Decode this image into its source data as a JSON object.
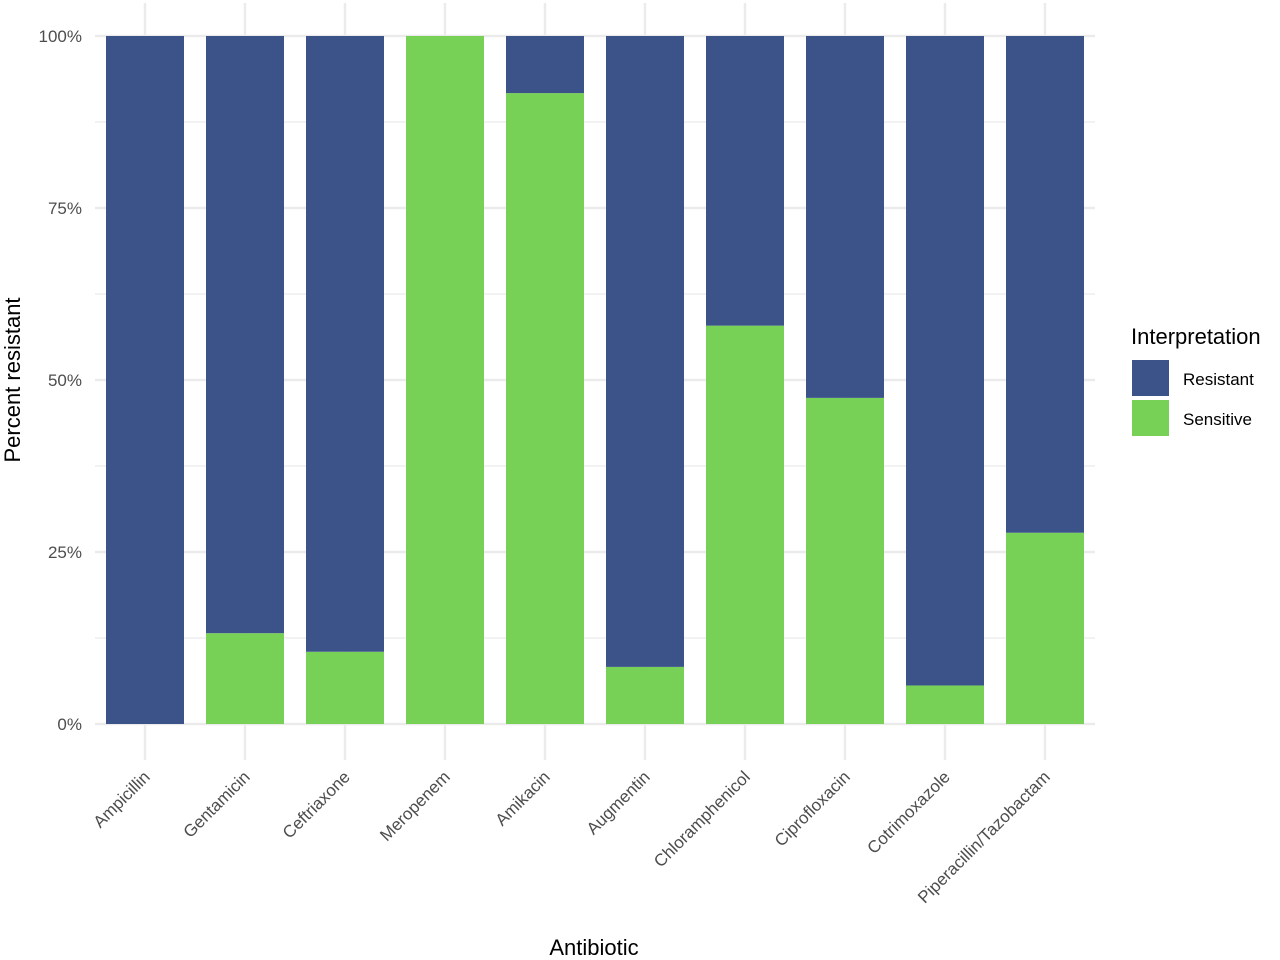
{
  "chart_data": {
    "type": "bar",
    "stacked": true,
    "percent_scale": true,
    "categories": [
      "Ampicillin",
      "Gentamicin",
      "Ceftriaxone",
      "Meropenem",
      "Amikacin",
      "Augmentin",
      "Chloramphenicol",
      "Ciprofloxacin",
      "Cotrimoxazole",
      "Piperacillin/Tazobactam"
    ],
    "series": [
      {
        "name": "Sensitive",
        "color": "#77d157",
        "values": [
          0,
          13.2,
          10.5,
          100,
          91.7,
          8.3,
          57.9,
          47.4,
          5.6,
          27.8
        ]
      },
      {
        "name": "Resistant",
        "color": "#3c538a",
        "values": [
          100,
          86.8,
          89.5,
          0,
          8.3,
          91.7,
          42.1,
          52.6,
          94.4,
          72.2
        ]
      }
    ],
    "xlabel": "Antibiotic",
    "ylabel": "Percent resistant",
    "ylim": [
      0,
      100
    ],
    "yticks": [
      "0%",
      "25%",
      "50%",
      "75%",
      "100%"
    ],
    "grid": true,
    "legend": {
      "title": "Interpretation",
      "position": "right",
      "entries": [
        {
          "label": "Resistant",
          "color": "#3c538a"
        },
        {
          "label": "Sensitive",
          "color": "#77d157"
        }
      ]
    }
  }
}
